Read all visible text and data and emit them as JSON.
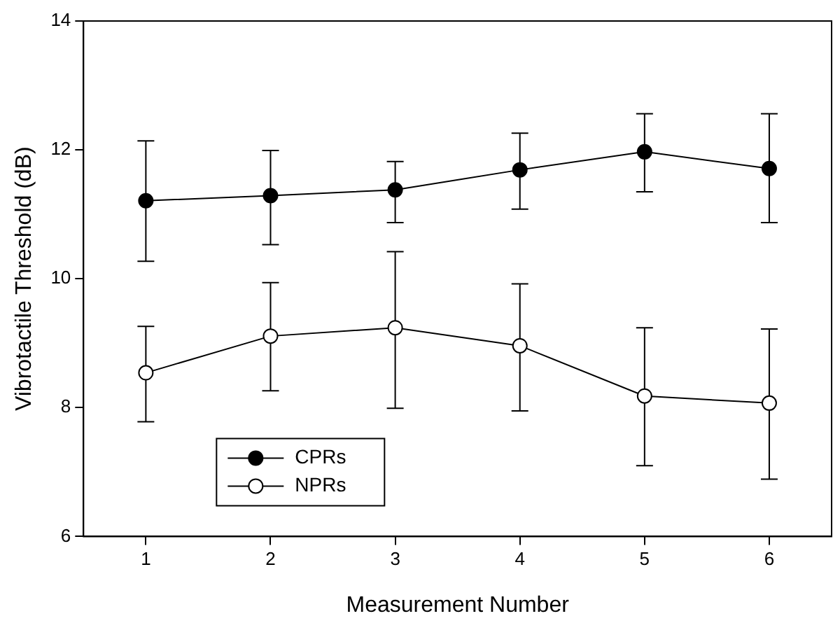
{
  "chart_data": {
    "type": "line",
    "xlabel": "Measurement Number",
    "ylabel": "Vibrotactile Threshold (dB)",
    "x": [
      1,
      2,
      3,
      4,
      5,
      6
    ],
    "series": [
      {
        "name": "CPRs",
        "color": "#000000",
        "values": [
          11.21,
          11.29,
          11.38,
          11.69,
          11.97,
          11.71
        ],
        "errors": [
          [
            10.27,
            12.14
          ],
          [
            10.53,
            11.99
          ],
          [
            10.87,
            11.82
          ],
          [
            11.08,
            12.26
          ],
          [
            11.35,
            12.56
          ],
          [
            10.87,
            12.56
          ]
        ]
      },
      {
        "name": "NPRs",
        "color": "#ffffff",
        "values": [
          8.54,
          9.11,
          9.24,
          8.96,
          8.18,
          8.07
        ],
        "errors": [
          [
            7.78,
            9.26
          ],
          [
            8.26,
            9.94
          ],
          [
            7.99,
            10.42
          ],
          [
            7.95,
            9.92
          ],
          [
            7.1,
            9.24
          ],
          [
            6.89,
            9.22
          ]
        ]
      }
    ],
    "xlim": [
      0.5,
      6.5
    ],
    "xticks": [
      1,
      2,
      3,
      4,
      5,
      6
    ],
    "ylim": [
      6,
      14
    ],
    "yticks": [
      6,
      8,
      10,
      12,
      14
    ],
    "grid": false,
    "legend": "bottom left",
    "marker": "circle",
    "line_style": "solid"
  }
}
